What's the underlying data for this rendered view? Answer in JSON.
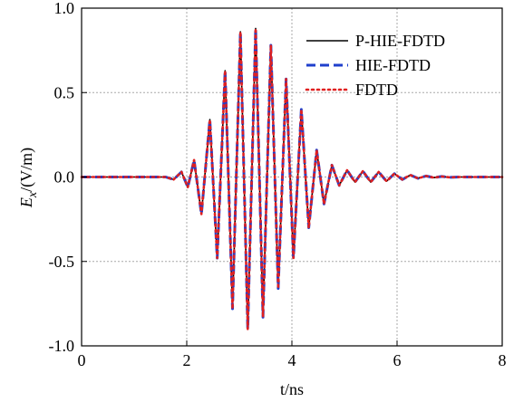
{
  "chart_data": {
    "type": "line",
    "title": "",
    "xlabel": "t/ns",
    "ylabel_symbol": "E",
    "ylabel_subscript": "x",
    "ylabel_unit": "/(V/m)",
    "xlim": [
      0,
      8
    ],
    "ylim": [
      -1.0,
      1.0
    ],
    "x_ticks": [
      0,
      2,
      4,
      6,
      8
    ],
    "x_tick_labels": [
      "0",
      "2",
      "4",
      "6",
      "8"
    ],
    "y_ticks": [
      1.0,
      0.5,
      0.0,
      -0.5,
      -1.0
    ],
    "y_tick_labels": [
      "1.0",
      "0.5",
      "0.0",
      "-0.5",
      "-1.0"
    ],
    "grid": true,
    "legend_position": "top-right",
    "series": [
      {
        "name": "P-HIE-FDTD",
        "color": "#000000",
        "style": "solid"
      },
      {
        "name": "HIE-FDTD",
        "color": "#1f3fcc",
        "style": "dashed"
      },
      {
        "name": "FDTD",
        "color": "#e02020",
        "style": "dotted"
      }
    ],
    "x": [
      0.0,
      1.6,
      1.75,
      1.9,
      2.02,
      2.14,
      2.28,
      2.44,
      2.58,
      2.73,
      2.87,
      3.02,
      3.16,
      3.31,
      3.45,
      3.6,
      3.74,
      3.89,
      4.03,
      4.18,
      4.32,
      4.47,
      4.61,
      4.76,
      4.9,
      5.05,
      5.2,
      5.35,
      5.5,
      5.65,
      5.8,
      5.95,
      6.1,
      6.25,
      6.4,
      6.55,
      6.7,
      6.85,
      7.0,
      7.2,
      7.4,
      7.6,
      8.0
    ],
    "y": [
      0.0,
      0.0,
      -0.015,
      0.03,
      -0.06,
      0.1,
      -0.22,
      0.34,
      -0.48,
      0.63,
      -0.78,
      0.86,
      -0.9,
      0.88,
      -0.83,
      0.78,
      -0.66,
      0.58,
      -0.48,
      0.4,
      -0.3,
      0.16,
      -0.16,
      0.07,
      -0.05,
      0.04,
      -0.03,
      0.035,
      -0.03,
      0.03,
      -0.025,
      0.02,
      -0.015,
      0.012,
      -0.008,
      0.006,
      -0.004,
      0.003,
      -0.002,
      0.0,
      0.0,
      0.0,
      0.0
    ]
  }
}
